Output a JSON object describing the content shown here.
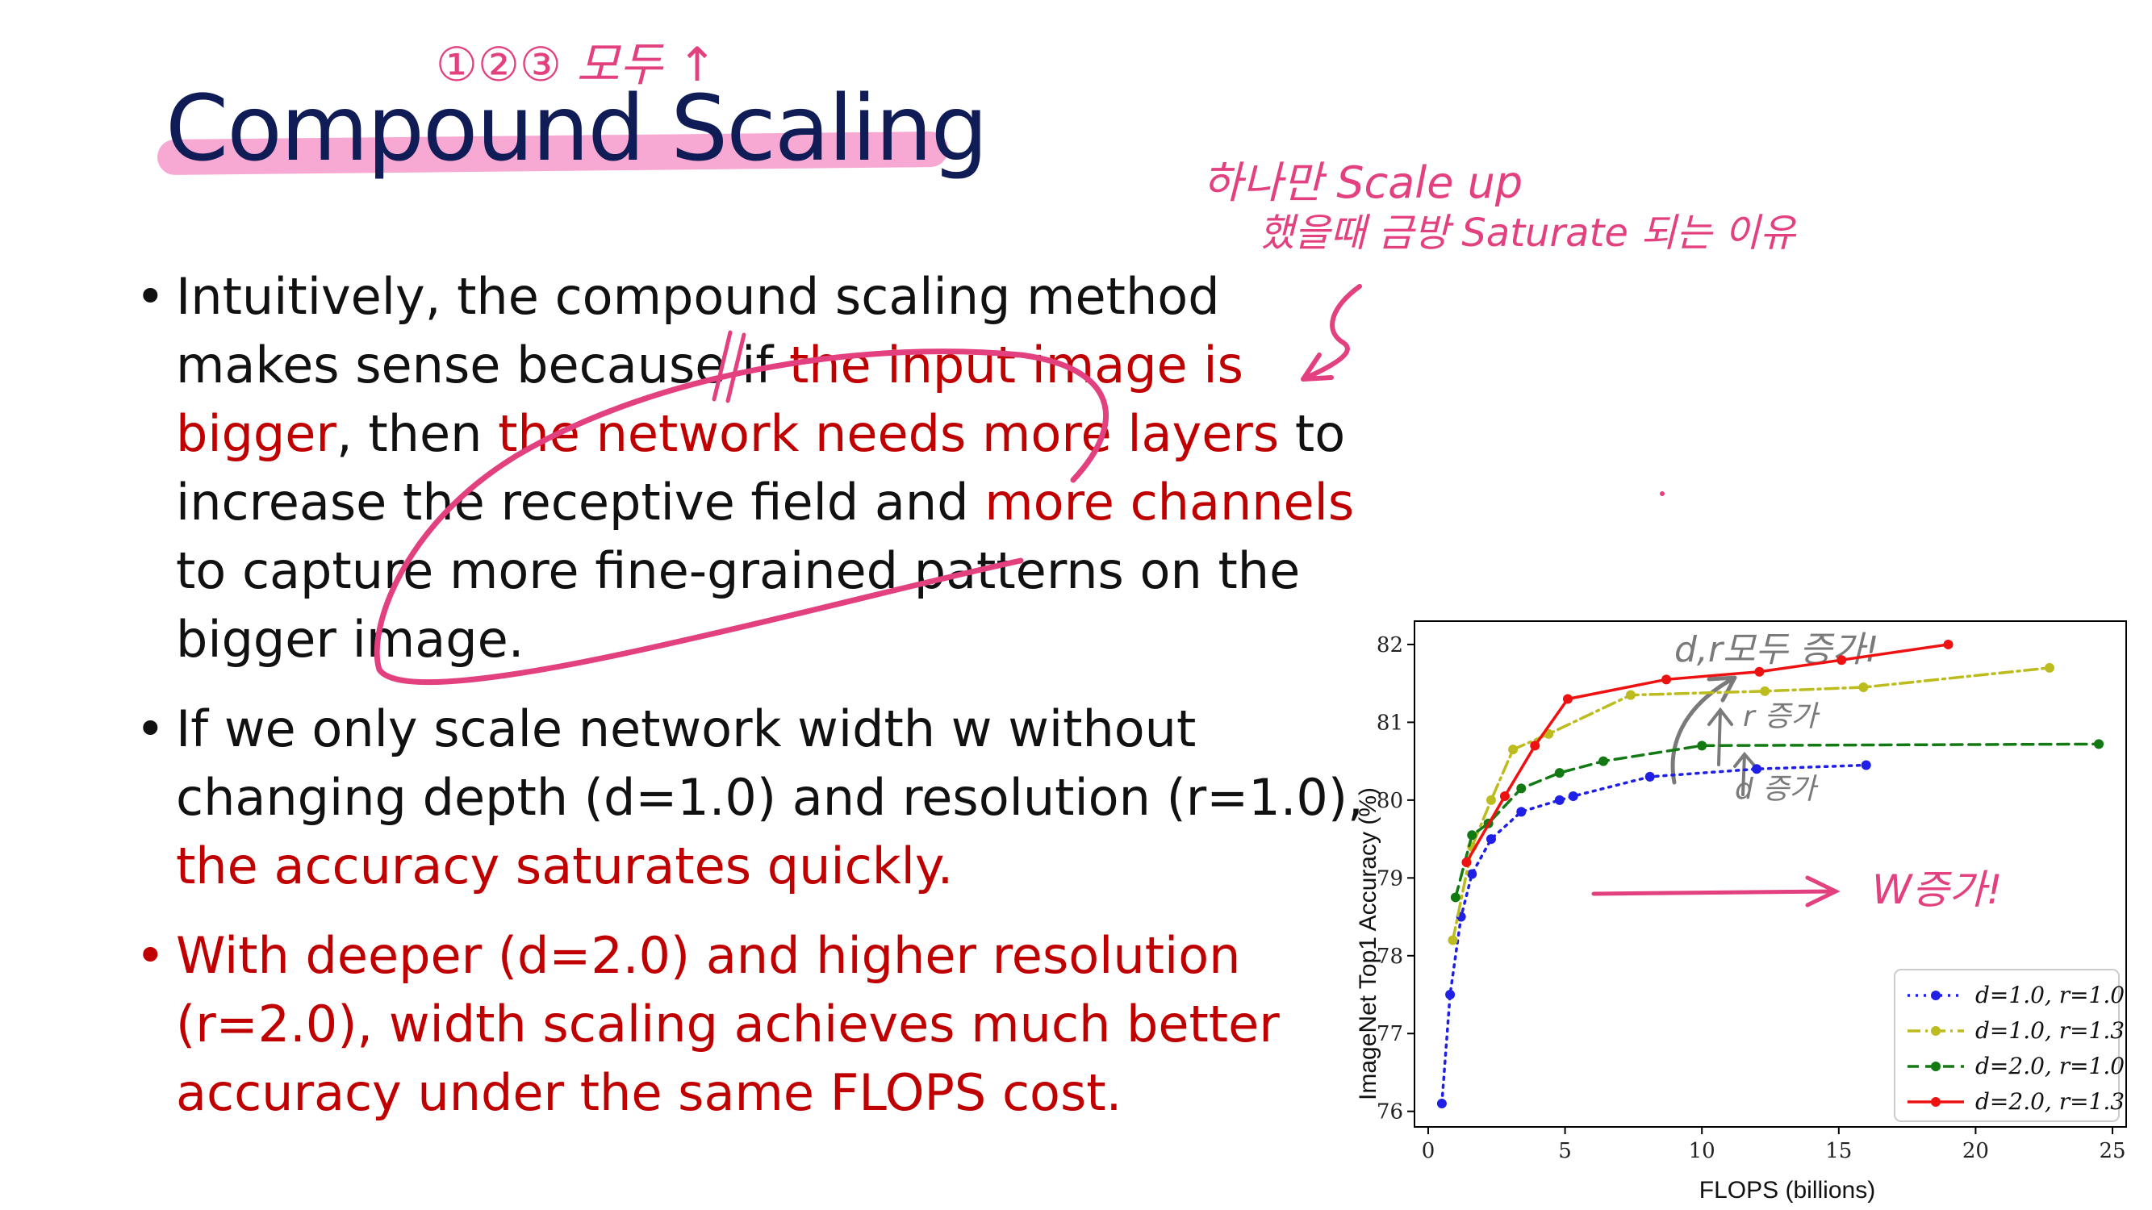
{
  "slide": {
    "title": "Compound Scaling",
    "bullets": [
      {
        "dot": "•",
        "segments": [
          {
            "text": "Intuitively, the compound scaling method makes sense because if ",
            "style": "normal"
          },
          {
            "text": "the input image is bigger",
            "style": "red"
          },
          {
            "text": ", then ",
            "style": "normal"
          },
          {
            "text": "the network needs more layers",
            "style": "red"
          },
          {
            "text": " to increase the receptive field and ",
            "style": "normal"
          },
          {
            "text": "more channels",
            "style": "red"
          },
          {
            "text": " to capture more fine-grained patterns on the bigger image.",
            "style": "normal"
          }
        ]
      },
      {
        "dot": "•",
        "segments": [
          {
            "text": "If we only scale network width w without changing depth (d=1.0) and resolution (r=1.0), ",
            "style": "normal"
          },
          {
            "text": "the accuracy saturates quickly.",
            "style": "red"
          }
        ]
      },
      {
        "dot": "•",
        "segments": [
          {
            "text": "With deeper (d=2.0) and higher resolution (r=2.0), width scaling achieves much better accuracy under the same FLOPS cost.",
            "style": "red"
          }
        ]
      }
    ]
  },
  "annotations": {
    "title_note": "①②③ 모두 ↑",
    "note_line1": "하나만 Scale up",
    "note_line2": "했을때 금방 Saturate 되는 이유",
    "chart_note_dr": "d,r모두 증가!",
    "chart_note_r": "r 증가",
    "chart_note_d": "d 증가",
    "chart_note_w": "W증가!"
  },
  "chart_data": {
    "type": "line",
    "xlabel": "FLOPS (billions)",
    "ylabel": "ImageNet Top1 Accuracy (%)",
    "xlim": [
      -0.5,
      25.5
    ],
    "ylim": [
      75.8,
      82.3
    ],
    "xticks": [
      0,
      5,
      10,
      15,
      20,
      25
    ],
    "yticks": [
      76,
      77,
      78,
      79,
      80,
      81,
      82
    ],
    "legend_position": "lower-right",
    "grid": false,
    "series": [
      {
        "name": "d=1.0, r=1.0",
        "color": "#1f1fe6",
        "dash": "3,7",
        "x": [
          0.5,
          0.8,
          1.2,
          1.6,
          2.3,
          3.4,
          4.8,
          5.3,
          8.1,
          12.0,
          16.0
        ],
        "y": [
          76.1,
          77.5,
          78.5,
          79.05,
          79.5,
          79.85,
          80.0,
          80.05,
          80.3,
          80.4,
          80.45
        ]
      },
      {
        "name": "d=1.0, r=1.3",
        "color": "#bcbc1e",
        "dash": "16,6,3,6",
        "x": [
          0.9,
          1.6,
          2.3,
          3.1,
          4.4,
          7.4,
          12.3,
          15.9,
          22.7
        ],
        "y": [
          78.2,
          79.4,
          80.0,
          80.65,
          80.85,
          81.35,
          81.4,
          81.45,
          81.7
        ]
      },
      {
        "name": "d=2.0, r=1.0",
        "color": "#137a13",
        "dash": "14,8",
        "x": [
          1.0,
          1.6,
          2.2,
          3.4,
          4.8,
          6.4,
          10.0,
          24.5
        ],
        "y": [
          78.75,
          79.55,
          79.7,
          80.15,
          80.35,
          80.5,
          80.7,
          80.72
        ]
      },
      {
        "name": "d=2.0, r=1.3",
        "color": "#ee1111",
        "dash": "none",
        "x": [
          1.4,
          2.8,
          3.9,
          5.1,
          8.7,
          12.1,
          15.1,
          19.0
        ],
        "y": [
          79.2,
          80.05,
          80.7,
          81.3,
          81.55,
          81.65,
          81.8,
          82.0
        ]
      }
    ]
  },
  "colors": {
    "title": "#101c55",
    "emphasis": "#c00000",
    "ink_pink": "#e2407f",
    "ink_gray": "#7a7a7a"
  }
}
